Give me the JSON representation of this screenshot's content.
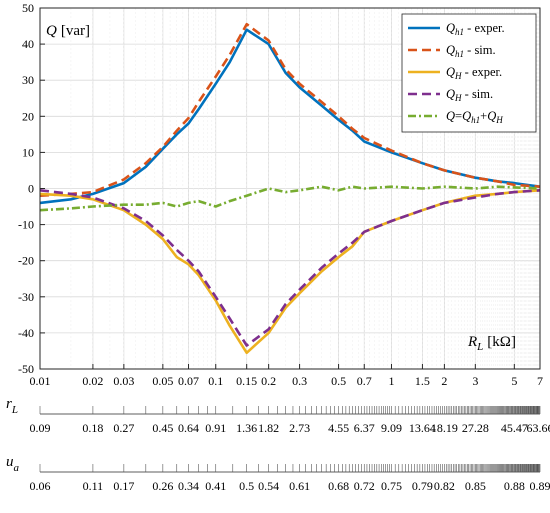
{
  "chart_data": {
    "type": "line",
    "x_scale": "log",
    "xlim": [
      0.01,
      7
    ],
    "ylim": [
      -50,
      50
    ],
    "yticks": [
      -50,
      -40,
      -30,
      -20,
      -10,
      0,
      10,
      20,
      30,
      40,
      50
    ],
    "xticks": [
      0.01,
      0.02,
      0.03,
      0.05,
      0.07,
      0.1,
      0.15,
      0.2,
      0.3,
      0.5,
      0.7,
      1,
      1.5,
      2,
      3,
      5,
      7
    ],
    "xtick_labels": [
      "0.01",
      "0.02",
      "0.03",
      "0.05",
      "0.07",
      "0.1",
      "0.15",
      "0.2",
      "0.3",
      "0.5",
      "0.7",
      "1",
      "1.5",
      "2",
      "3",
      "5",
      "7"
    ],
    "grid": true,
    "legend_position": "top-right",
    "ylabel": {
      "sym": "Q",
      "unit": "[var]"
    },
    "xlabel": {
      "sym": "R",
      "sub": "L",
      "unit": "[kΩ]"
    },
    "series": [
      {
        "key": "qh1_exp",
        "color": "#0072BD",
        "style": "solid",
        "legend": {
          "sym": "Q",
          "sub": "h1",
          "rest": " - exper."
        },
        "x": [
          0.01,
          0.015,
          0.02,
          0.03,
          0.04,
          0.05,
          0.06,
          0.07,
          0.08,
          0.1,
          0.12,
          0.15,
          0.2,
          0.25,
          0.3,
          0.4,
          0.5,
          0.6,
          0.7,
          1,
          1.5,
          2,
          3,
          4,
          5,
          7
        ],
        "y": [
          -4,
          -3,
          -1.5,
          1.5,
          6,
          11,
          15,
          18,
          22,
          29,
          35,
          44,
          40,
          32,
          28,
          23,
          19,
          16,
          13,
          10,
          7,
          5,
          3,
          2,
          1.5,
          0.5
        ]
      },
      {
        "key": "qh1_sim",
        "color": "#D95319",
        "style": "dashed",
        "legend": {
          "sym": "Q",
          "sub": "h1",
          "rest": " - sim."
        },
        "x": [
          0.01,
          0.015,
          0.02,
          0.03,
          0.04,
          0.05,
          0.06,
          0.07,
          0.08,
          0.1,
          0.12,
          0.15,
          0.2,
          0.25,
          0.3,
          0.4,
          0.5,
          0.6,
          0.7,
          1,
          1.5,
          2,
          3,
          4,
          5,
          7
        ],
        "y": [
          -2,
          -1.5,
          -1,
          2.5,
          7,
          11.5,
          16,
          19.5,
          24,
          31,
          37,
          45.5,
          41,
          33,
          29,
          24,
          20,
          16.5,
          14,
          10.5,
          7,
          5,
          3,
          2,
          1,
          0.5
        ]
      },
      {
        "key": "qH_exp",
        "color": "#EDB120",
        "style": "solid",
        "legend": {
          "sym": "Q",
          "sub": "H",
          "rest": " - exper."
        },
        "x": [
          0.01,
          0.015,
          0.02,
          0.03,
          0.04,
          0.05,
          0.06,
          0.07,
          0.08,
          0.1,
          0.12,
          0.15,
          0.2,
          0.25,
          0.3,
          0.4,
          0.5,
          0.6,
          0.7,
          1,
          1.5,
          2,
          3,
          4,
          5,
          7
        ],
        "y": [
          -1.5,
          -2,
          -3,
          -6,
          -10,
          -14,
          -19,
          -21,
          -24,
          -31,
          -38,
          -45.5,
          -40,
          -33,
          -29,
          -23,
          -19,
          -16,
          -12,
          -9,
          -6,
          -4,
          -2,
          -1.5,
          -1,
          -0.5
        ]
      },
      {
        "key": "qH_sim",
        "color": "#7E2F8E",
        "style": "dashed",
        "legend": {
          "sym": "Q",
          "sub": "H",
          "rest": " - sim."
        },
        "x": [
          0.01,
          0.015,
          0.02,
          0.03,
          0.04,
          0.05,
          0.06,
          0.07,
          0.08,
          0.1,
          0.12,
          0.15,
          0.2,
          0.25,
          0.3,
          0.4,
          0.5,
          0.6,
          0.7,
          1,
          1.5,
          2,
          3,
          4,
          5,
          7
        ],
        "y": [
          -0.5,
          -1.5,
          -2.5,
          -5.5,
          -9,
          -13,
          -17,
          -20,
          -23,
          -30,
          -36,
          -43.5,
          -39,
          -32,
          -28,
          -22,
          -18,
          -15,
          -12,
          -9,
          -6,
          -4,
          -2.5,
          -1.5,
          -1,
          -0.5
        ]
      },
      {
        "key": "q_sum",
        "color": "#77AC30",
        "style": "dashdot",
        "legend": {
          "sym": "Q",
          "eq": "=",
          "a": "Q",
          "asub": "h1",
          "plus": "+",
          "b": "Q",
          "bsub": "H"
        },
        "x": [
          0.01,
          0.015,
          0.02,
          0.03,
          0.04,
          0.05,
          0.06,
          0.07,
          0.08,
          0.1,
          0.12,
          0.15,
          0.2,
          0.25,
          0.3,
          0.4,
          0.5,
          0.6,
          0.7,
          1,
          1.5,
          2,
          3,
          4,
          5,
          7
        ],
        "y": [
          -6,
          -5.5,
          -5,
          -4.5,
          -4.5,
          -4,
          -5,
          -4,
          -3.5,
          -5,
          -3.5,
          -2,
          0,
          -1,
          -0.5,
          0.5,
          -0.5,
          0.5,
          0,
          0.5,
          0,
          0.5,
          0,
          0.5,
          0.3,
          0
        ]
      }
    ],
    "secondary_axes": [
      {
        "label_sym": "r",
        "label_sub": "L",
        "tick_labels": [
          "0.09",
          "0.18",
          "0.27",
          "0.45",
          "0.64",
          "0.91",
          "1.36",
          "1.82",
          "2.73",
          "4.55",
          "6.37",
          "9.09",
          "13.64",
          "18.19",
          "27.28",
          "45.47",
          "63.66"
        ]
      },
      {
        "label_sym": "u",
        "label_sub": "a",
        "tick_labels": [
          "0.06",
          "0.11",
          "0.17",
          "0.26",
          "0.34",
          "0.41",
          "0.5",
          "0.54",
          "0.61",
          "0.68",
          "0.72",
          "0.75",
          "0.79",
          "0.82",
          "0.85",
          "0.88",
          "0.89"
        ]
      }
    ]
  }
}
